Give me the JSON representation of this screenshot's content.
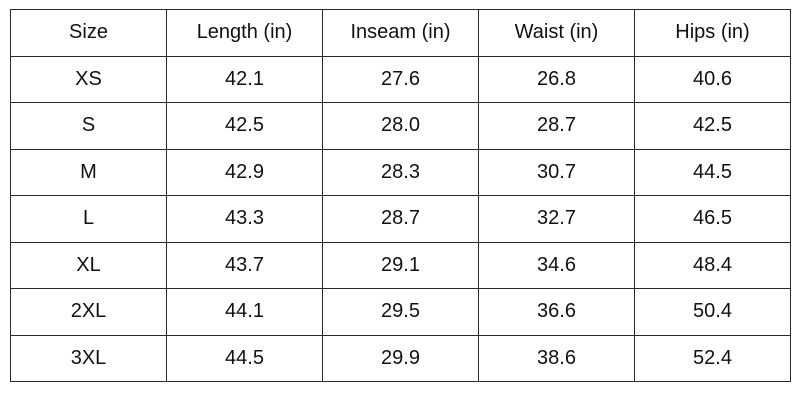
{
  "table": {
    "headers": [
      "Size",
      "Length (in)",
      "Inseam (in)",
      "Waist (in)",
      "Hips (in)"
    ],
    "rows": [
      [
        "XS",
        "42.1",
        "27.6",
        "26.8",
        "40.6"
      ],
      [
        "S",
        "42.5",
        "28.0",
        "28.7",
        "42.5"
      ],
      [
        "M",
        "42.9",
        "28.3",
        "30.7",
        "44.5"
      ],
      [
        "L",
        "43.3",
        "28.7",
        "32.7",
        "46.5"
      ],
      [
        "XL",
        "43.7",
        "29.1",
        "34.6",
        "48.4"
      ],
      [
        "2XL",
        "44.1",
        "29.5",
        "36.6",
        "50.4"
      ],
      [
        "3XL",
        "44.5",
        "29.9",
        "38.6",
        "52.4"
      ]
    ]
  }
}
